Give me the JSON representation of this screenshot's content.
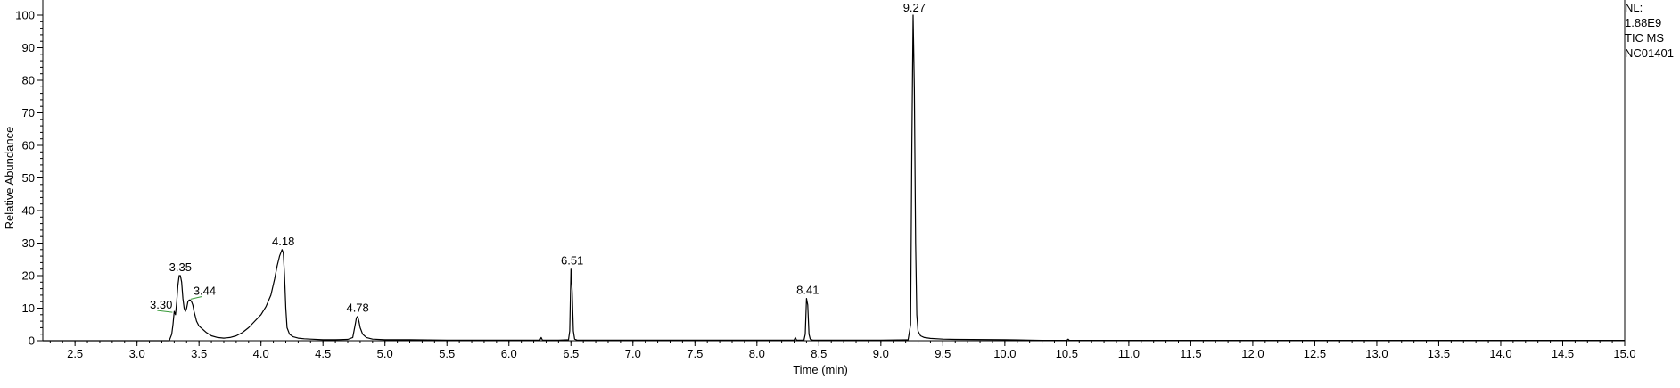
{
  "chart_data": {
    "type": "line",
    "xlabel": "Time (min)",
    "ylabel": "Relative Abundance",
    "xlim": [
      2.24,
      15.0
    ],
    "ylim": [
      0,
      100
    ],
    "x_ticks": [
      2.5,
      3.0,
      3.5,
      4.0,
      4.5,
      5.0,
      5.5,
      6.0,
      6.5,
      7.0,
      7.5,
      8.0,
      8.5,
      9.0,
      9.5,
      10.0,
      10.5,
      11.0,
      11.5,
      12.0,
      12.5,
      13.0,
      13.5,
      14.0,
      14.5,
      15.0
    ],
    "y_ticks": [
      0,
      10,
      20,
      30,
      40,
      50,
      60,
      70,
      80,
      90,
      100
    ],
    "grid": false,
    "series": [
      {
        "color": "#000000",
        "x": [
          2.24,
          3.26,
          3.28,
          3.29,
          3.3,
          3.31,
          3.32,
          3.33,
          3.34,
          3.35,
          3.36,
          3.37,
          3.38,
          3.39,
          3.4,
          3.41,
          3.42,
          3.43,
          3.44,
          3.45,
          3.46,
          3.48,
          3.5,
          3.53,
          3.56,
          3.6,
          3.65,
          3.7,
          3.75,
          3.8,
          3.85,
          3.9,
          3.95,
          4.0,
          4.04,
          4.08,
          4.11,
          4.13,
          4.15,
          4.16,
          4.17,
          4.18,
          4.19,
          4.2,
          4.21,
          4.23,
          4.26,
          4.3,
          4.35,
          4.4,
          4.5,
          4.6,
          4.7,
          4.74,
          4.76,
          4.77,
          4.78,
          4.79,
          4.8,
          4.82,
          4.85,
          4.9,
          5.0,
          5.2,
          5.5,
          6.0,
          6.25,
          6.26,
          6.27,
          6.4,
          6.48,
          6.49,
          6.5,
          6.51,
          6.52,
          6.53,
          6.55,
          6.6,
          7.0,
          7.5,
          8.0,
          8.3,
          8.31,
          8.32,
          8.38,
          8.39,
          8.4,
          8.41,
          8.42,
          8.43,
          8.45,
          8.5,
          9.0,
          9.22,
          9.24,
          9.25,
          9.26,
          9.27,
          9.28,
          9.29,
          9.3,
          9.32,
          9.35,
          9.4,
          9.5,
          9.6,
          10.0,
          10.2,
          10.3,
          10.5,
          10.51,
          10.52,
          10.6,
          11.0,
          12.0,
          13.0,
          14.0,
          15.0
        ],
        "y": [
          0,
          0,
          2,
          5,
          9,
          8,
          12,
          17,
          20,
          20,
          18,
          13,
          10,
          9,
          10,
          12,
          12.5,
          12.5,
          12,
          11,
          9,
          6,
          4.5,
          3.5,
          2.5,
          1.5,
          1.0,
          0.8,
          1.0,
          1.5,
          2.5,
          4,
          6,
          8,
          10.5,
          14,
          19,
          23,
          26,
          27,
          28,
          27,
          20,
          10,
          4,
          2,
          1.2,
          0.8,
          0.6,
          0.5,
          0.3,
          0.3,
          0.4,
          1,
          5,
          7,
          7.5,
          6,
          4,
          2,
          1,
          0.5,
          0.3,
          0.3,
          0.2,
          0.2,
          0.2,
          1,
          0.2,
          0.2,
          0.3,
          3,
          22,
          15,
          3,
          0.5,
          0.2,
          0.2,
          0.2,
          0.2,
          0.2,
          0.2,
          1,
          0.2,
          0.2,
          2,
          13,
          11,
          2,
          0.5,
          0.2,
          0.2,
          0.2,
          0.3,
          5,
          60,
          100,
          77,
          30,
          8,
          3,
          1.5,
          1,
          0.7,
          0.5,
          0.4,
          0.3,
          0.2,
          0.1,
          0.1,
          0.5,
          0.1,
          0.1,
          0.1,
          0.1,
          0.1,
          0.1,
          0.1
        ]
      }
    ],
    "peak_labels": [
      {
        "x": 3.3,
        "y": 9,
        "text": "3.30"
      },
      {
        "x": 3.35,
        "y": 20,
        "text": "3.35"
      },
      {
        "x": 3.44,
        "y": 12.5,
        "text": "3.44"
      },
      {
        "x": 4.18,
        "y": 28,
        "text": "4.18"
      },
      {
        "x": 4.78,
        "y": 7.5,
        "text": "4.78"
      },
      {
        "x": 6.51,
        "y": 22,
        "text": "6.51"
      },
      {
        "x": 8.41,
        "y": 13,
        "text": "8.41"
      },
      {
        "x": 9.27,
        "y": 100,
        "text": "9.27"
      }
    ],
    "side_info": [
      "NL:",
      "1.88E9",
      "TIC  MS",
      "NC01401"
    ]
  }
}
